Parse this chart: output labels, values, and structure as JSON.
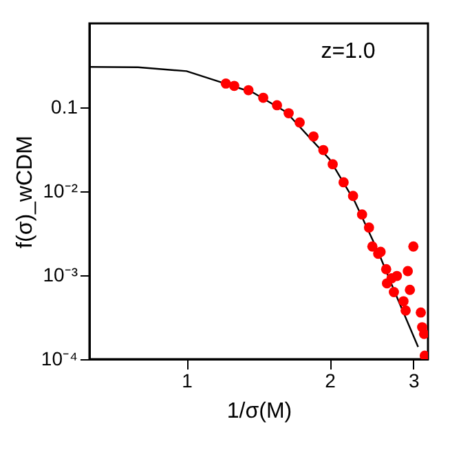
{
  "chart_data": {
    "type": "scatter",
    "xlabel": "1/σ(M)",
    "ylabel": "f(σ)_wCDM",
    "annotations": [
      "z=1.0"
    ],
    "log": "xy",
    "xlim": [
      0.625,
      3.22
    ],
    "xticks": [
      1,
      2,
      3
    ],
    "ylim": [
      0.0001,
      1
    ],
    "yticks": [
      {
        "value": 0.1,
        "label": "0.1"
      },
      {
        "value": 0.01,
        "label": "10⁻²"
      },
      {
        "value": 0.001,
        "label": "10⁻³"
      },
      {
        "value": 0.0001,
        "label": "10⁻⁴"
      }
    ],
    "grid": false,
    "series": [
      {
        "type": "line",
        "color": "#000000",
        "marker": "none",
        "line_style": "solid",
        "x": [
          0.628,
          0.791,
          1.0,
          1.18,
          1.38,
          1.62,
          2.0,
          2.26,
          2.53,
          2.77,
          3.07
        ],
        "values": [
          0.303,
          0.3,
          0.27,
          0.2,
          0.15,
          0.088,
          0.024,
          0.0075,
          0.0019,
          0.00055,
          0.00014
        ]
      },
      {
        "type": "scatter",
        "color": "#ff0000",
        "marker": "circle",
        "x": [
          1.21,
          1.26,
          1.35,
          1.45,
          1.55,
          1.64,
          1.73,
          1.85,
          1.94,
          2.03,
          2.14,
          2.24,
          2.34,
          2.42,
          2.46,
          2.53,
          2.56,
          2.63,
          2.64,
          2.7,
          2.73,
          2.77,
          2.86,
          2.89,
          2.92,
          2.95,
          3.0,
          3.11,
          3.13,
          3.16,
          3.17
        ],
        "values": [
          0.192,
          0.18,
          0.16,
          0.13,
          0.106,
          0.085,
          0.066,
          0.045,
          0.031,
          0.021,
          0.0128,
          0.0088,
          0.0053,
          0.0037,
          0.0022,
          0.0018,
          0.0019,
          0.00118,
          0.0008,
          0.00092,
          0.00063,
          0.00098,
          0.00049,
          0.00038,
          0.00112,
          0.00067,
          0.0022,
          0.00036,
          0.00024,
          0.0002,
          0.00011
        ]
      }
    ]
  }
}
